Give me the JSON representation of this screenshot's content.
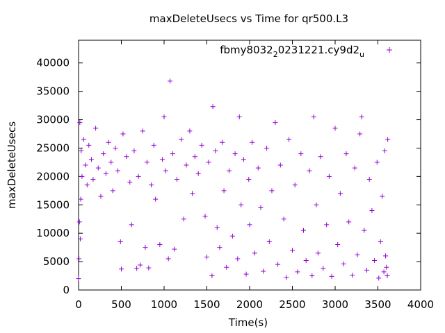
{
  "chart_data": {
    "type": "scatter",
    "title": "maxDeleteUsecs vs Time for qr500.L3",
    "xlabel": "Time(s)",
    "ylabel": "maxDeleteUsecs",
    "xlim": [
      0,
      4000
    ],
    "ylim": [
      0,
      44000
    ],
    "xticks": [
      0,
      500,
      1000,
      1500,
      2000,
      2500,
      3000,
      3500,
      4000
    ],
    "yticks": [
      0,
      5000,
      10000,
      15000,
      20000,
      25000,
      30000,
      35000,
      40000
    ],
    "xtick_labels": [
      "0",
      "500",
      "1000",
      "1500",
      "2000",
      "2500",
      "3000",
      "3500",
      "4000"
    ],
    "ytick_labels": [
      "0",
      "5000",
      "10000",
      "15000",
      "20000",
      "25000",
      "30000",
      "35000",
      "40000"
    ],
    "grid": false,
    "legend_position": "top-right",
    "marker": "plus",
    "series": [
      {
        "name": "fbmy8032_20231221.cy9d2_u",
        "legend_parts": {
          "a": "fbmy8032",
          "sub1": "2",
          "b": "0231221.cy9d2",
          "sub2": "u"
        },
        "color": "#9400d3",
        "points": [
          [
            0,
            2000
          ],
          [
            5,
            5500
          ],
          [
            10,
            12000
          ],
          [
            15,
            29500
          ],
          [
            20,
            9000
          ],
          [
            25,
            16000
          ],
          [
            30,
            24500
          ],
          [
            40,
            20000
          ],
          [
            60,
            26500
          ],
          [
            80,
            22000
          ],
          [
            100,
            18500
          ],
          [
            120,
            25500
          ],
          [
            150,
            23000
          ],
          [
            170,
            19500
          ],
          [
            200,
            28500
          ],
          [
            230,
            21500
          ],
          [
            260,
            16500
          ],
          [
            290,
            24000
          ],
          [
            320,
            20500
          ],
          [
            350,
            26000
          ],
          [
            380,
            22500
          ],
          [
            400,
            17500
          ],
          [
            430,
            25000
          ],
          [
            460,
            21000
          ],
          [
            490,
            8500
          ],
          [
            500,
            3700
          ],
          [
            520,
            27500
          ],
          [
            560,
            23500
          ],
          [
            600,
            19000
          ],
          [
            620,
            11500
          ],
          [
            650,
            24500
          ],
          [
            680,
            3800
          ],
          [
            700,
            20000
          ],
          [
            720,
            4400
          ],
          [
            750,
            28000
          ],
          [
            780,
            7500
          ],
          [
            800,
            22500
          ],
          [
            820,
            3900
          ],
          [
            850,
            18500
          ],
          [
            880,
            25500
          ],
          [
            900,
            16000
          ],
          [
            950,
            8000
          ],
          [
            980,
            23000
          ],
          [
            1000,
            30500
          ],
          [
            1020,
            21000
          ],
          [
            1050,
            5500
          ],
          [
            1070,
            36800
          ],
          [
            1100,
            24000
          ],
          [
            1120,
            7200
          ],
          [
            1150,
            19500
          ],
          [
            1200,
            26500
          ],
          [
            1230,
            12500
          ],
          [
            1260,
            22000
          ],
          [
            1300,
            28000
          ],
          [
            1330,
            17000
          ],
          [
            1360,
            23500
          ],
          [
            1400,
            20500
          ],
          [
            1440,
            25500
          ],
          [
            1480,
            13000
          ],
          [
            1500,
            5800
          ],
          [
            1520,
            22500
          ],
          [
            1560,
            2500
          ],
          [
            1570,
            32300
          ],
          [
            1600,
            24500
          ],
          [
            1620,
            11000
          ],
          [
            1650,
            7500
          ],
          [
            1680,
            26000
          ],
          [
            1700,
            17500
          ],
          [
            1730,
            4000
          ],
          [
            1760,
            21000
          ],
          [
            1800,
            9500
          ],
          [
            1830,
            24000
          ],
          [
            1860,
            5500
          ],
          [
            1880,
            30500
          ],
          [
            1900,
            15000
          ],
          [
            1930,
            23000
          ],
          [
            1960,
            2800
          ],
          [
            1990,
            19500
          ],
          [
            2000,
            11500
          ],
          [
            2030,
            26000
          ],
          [
            2060,
            6500
          ],
          [
            2100,
            21500
          ],
          [
            2130,
            14500
          ],
          [
            2160,
            3300
          ],
          [
            2200,
            25000
          ],
          [
            2230,
            8500
          ],
          [
            2260,
            17500
          ],
          [
            2300,
            29500
          ],
          [
            2330,
            4500
          ],
          [
            2360,
            22000
          ],
          [
            2400,
            12500
          ],
          [
            2430,
            2200
          ],
          [
            2460,
            26500
          ],
          [
            2500,
            7000
          ],
          [
            2530,
            18500
          ],
          [
            2560,
            3200
          ],
          [
            2600,
            24000
          ],
          [
            2630,
            10500
          ],
          [
            2660,
            5200
          ],
          [
            2700,
            21000
          ],
          [
            2730,
            2500
          ],
          [
            2750,
            30500
          ],
          [
            2780,
            15000
          ],
          [
            2800,
            6500
          ],
          [
            2830,
            23500
          ],
          [
            2860,
            3800
          ],
          [
            2900,
            11500
          ],
          [
            2930,
            20000
          ],
          [
            2960,
            2400
          ],
          [
            3000,
            28500
          ],
          [
            3030,
            8000
          ],
          [
            3060,
            17000
          ],
          [
            3100,
            4600
          ],
          [
            3130,
            24000
          ],
          [
            3160,
            12000
          ],
          [
            3200,
            2600
          ],
          [
            3230,
            21500
          ],
          [
            3260,
            6200
          ],
          [
            3290,
            27500
          ],
          [
            3310,
            30500
          ],
          [
            3340,
            10500
          ],
          [
            3370,
            3500
          ],
          [
            3400,
            19500
          ],
          [
            3430,
            14000
          ],
          [
            3460,
            5200
          ],
          [
            3490,
            22500
          ],
          [
            3510,
            2100
          ],
          [
            3530,
            8500
          ],
          [
            3550,
            16500
          ],
          [
            3570,
            3200
          ],
          [
            3580,
            24500
          ],
          [
            3590,
            6000
          ],
          [
            3600,
            4000
          ],
          [
            3610,
            2500
          ],
          [
            3615,
            26500
          ]
        ]
      }
    ]
  }
}
